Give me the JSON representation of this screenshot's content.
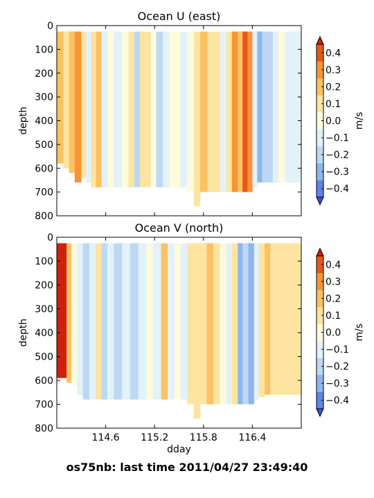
{
  "footer_text": "os75nb: last time 2011/04/27 23:49:40",
  "colors": {
    "levels": [
      "#3a50e6",
      "#5e84e8",
      "#8fb6ee",
      "#bcd8f4",
      "#e2f1fa",
      "#fdfbdc",
      "#fde4a0",
      "#fbc162",
      "#f89436",
      "#ea5518",
      "#cf2010"
    ],
    "no_data": "#ffffff",
    "frame": "#000000"
  },
  "chart_data": [
    {
      "type": "heatmap",
      "title": "Ocean U (east)",
      "ylabel": "depth",
      "xlabel": "",
      "xlim": [
        114.0,
        117.0
      ],
      "ylim": [
        800,
        0
      ],
      "xticks": [
        114.6,
        115.2,
        115.8,
        116.4
      ],
      "xtick_labels": [
        "",
        "",
        "",
        ""
      ],
      "yticks": [
        0,
        100,
        200,
        300,
        400,
        500,
        600,
        700,
        800
      ],
      "ytick_labels": [
        "0",
        "100",
        "200",
        "300",
        "400",
        "500",
        "600",
        "700",
        "800"
      ],
      "colorbar": {
        "label": "m/s",
        "levels": [
          -0.45,
          -0.35,
          -0.25,
          -0.15,
          -0.05,
          0.05,
          0.15,
          0.25,
          0.35,
          0.45
        ],
        "ticks": [
          -0.4,
          -0.3,
          -0.2,
          -0.1,
          0.0,
          0.1,
          0.2,
          0.3,
          0.4
        ],
        "tick_labels": [
          "−0.4",
          "−0.3",
          "−0.2",
          "−0.1",
          "0.0",
          "0.1",
          "0.2",
          "0.3",
          "0.4"
        ],
        "extend": "both"
      },
      "columns": [
        {
          "x0": 114.0,
          "x1": 114.08,
          "v": 0.15,
          "top": 25,
          "bottom": 580
        },
        {
          "x0": 114.08,
          "x1": 114.15,
          "v": 0.05,
          "top": 25,
          "bottom": 600
        },
        {
          "x0": 114.15,
          "x1": 114.22,
          "v": 0.22,
          "top": 25,
          "bottom": 620
        },
        {
          "x0": 114.22,
          "x1": 114.3,
          "v": 0.25,
          "top": 25,
          "bottom": 660
        },
        {
          "x0": 114.3,
          "x1": 114.36,
          "v": 0.12,
          "top": 25,
          "bottom": 640
        },
        {
          "x0": 114.36,
          "x1": 114.42,
          "v": -0.15,
          "top": 25,
          "bottom": 660
        },
        {
          "x0": 114.42,
          "x1": 114.48,
          "v": 0.08,
          "top": 25,
          "bottom": 680
        },
        {
          "x0": 114.48,
          "x1": 114.55,
          "v": 0.22,
          "top": 25,
          "bottom": 680
        },
        {
          "x0": 114.55,
          "x1": 114.62,
          "v": -0.12,
          "top": 25,
          "bottom": 680
        },
        {
          "x0": 114.62,
          "x1": 114.7,
          "v": -0.05,
          "top": 25,
          "bottom": 680
        },
        {
          "x0": 114.7,
          "x1": 114.8,
          "v": -0.15,
          "top": 25,
          "bottom": 680
        },
        {
          "x0": 114.8,
          "x1": 114.88,
          "v": 0.0,
          "top": 25,
          "bottom": 680
        },
        {
          "x0": 114.88,
          "x1": 114.95,
          "v": 0.08,
          "top": 25,
          "bottom": 680
        },
        {
          "x0": 114.95,
          "x1": 115.02,
          "v": -0.22,
          "top": 25,
          "bottom": 680
        },
        {
          "x0": 115.02,
          "x1": 115.08,
          "v": 0.05,
          "top": 25,
          "bottom": 680
        },
        {
          "x0": 115.08,
          "x1": 115.15,
          "v": 0.1,
          "top": 25,
          "bottom": 680
        },
        {
          "x0": 115.15,
          "x1": 115.22,
          "v": -0.05,
          "top": 25,
          "bottom": 680
        },
        {
          "x0": 115.22,
          "x1": 115.3,
          "v": -0.2,
          "top": 25,
          "bottom": 680
        },
        {
          "x0": 115.3,
          "x1": 115.38,
          "v": -0.1,
          "top": 25,
          "bottom": 680
        },
        {
          "x0": 115.38,
          "x1": 115.45,
          "v": -0.05,
          "top": 25,
          "bottom": 680
        },
        {
          "x0": 115.45,
          "x1": 115.52,
          "v": 0.0,
          "top": 25,
          "bottom": 680
        },
        {
          "x0": 115.52,
          "x1": 115.6,
          "v": -0.12,
          "top": 25,
          "bottom": 680
        },
        {
          "x0": 115.6,
          "x1": 115.68,
          "v": -0.05,
          "top": 25,
          "bottom": 700
        },
        {
          "x0": 115.68,
          "x1": 115.76,
          "v": 0.05,
          "top": 25,
          "bottom": 760
        },
        {
          "x0": 115.76,
          "x1": 115.85,
          "v": 0.2,
          "top": 25,
          "bottom": 700
        },
        {
          "x0": 115.85,
          "x1": 115.93,
          "v": 0.05,
          "top": 25,
          "bottom": 700
        },
        {
          "x0": 115.93,
          "x1": 116.0,
          "v": 0.1,
          "top": 25,
          "bottom": 700
        },
        {
          "x0": 116.0,
          "x1": 116.08,
          "v": -0.08,
          "top": 25,
          "bottom": 700
        },
        {
          "x0": 116.08,
          "x1": 116.15,
          "v": 0.05,
          "top": 25,
          "bottom": 700
        },
        {
          "x0": 116.15,
          "x1": 116.22,
          "v": 0.25,
          "top": 25,
          "bottom": 700
        },
        {
          "x0": 116.22,
          "x1": 116.28,
          "v": 0.15,
          "top": 25,
          "bottom": 700
        },
        {
          "x0": 116.28,
          "x1": 116.34,
          "v": 0.38,
          "top": 25,
          "bottom": 700
        },
        {
          "x0": 116.34,
          "x1": 116.4,
          "v": 0.28,
          "top": 25,
          "bottom": 700
        },
        {
          "x0": 116.4,
          "x1": 116.46,
          "v": -0.15,
          "top": 25,
          "bottom": 680
        },
        {
          "x0": 116.46,
          "x1": 116.52,
          "v": -0.3,
          "top": 25,
          "bottom": 660
        },
        {
          "x0": 116.52,
          "x1": 116.58,
          "v": -0.2,
          "top": 25,
          "bottom": 660
        },
        {
          "x0": 116.58,
          "x1": 116.65,
          "v": -0.22,
          "top": 25,
          "bottom": 660
        },
        {
          "x0": 116.65,
          "x1": 116.72,
          "v": -0.15,
          "top": 25,
          "bottom": 660
        },
        {
          "x0": 116.72,
          "x1": 116.8,
          "v": -0.05,
          "top": 25,
          "bottom": 660
        },
        {
          "x0": 116.8,
          "x1": 116.9,
          "v": -0.12,
          "top": 25,
          "bottom": 660
        },
        {
          "x0": 116.9,
          "x1": 117.0,
          "v": -0.1,
          "top": 25,
          "bottom": 660
        }
      ]
    },
    {
      "type": "heatmap",
      "title": "Ocean V (north)",
      "ylabel": "depth",
      "xlabel": "dday",
      "xlim": [
        114.0,
        117.0
      ],
      "ylim": [
        800,
        0
      ],
      "xticks": [
        114.6,
        115.2,
        115.8,
        116.4
      ],
      "xtick_labels": [
        "114.6",
        "115.2",
        "115.8",
        "116.4"
      ],
      "yticks": [
        0,
        100,
        200,
        300,
        400,
        500,
        600,
        700,
        800
      ],
      "ytick_labels": [
        "0",
        "100",
        "200",
        "300",
        "400",
        "500",
        "600",
        "700",
        "800"
      ],
      "colorbar": {
        "label": "m/s",
        "levels": [
          -0.45,
          -0.35,
          -0.25,
          -0.15,
          -0.05,
          0.05,
          0.15,
          0.25,
          0.35,
          0.45
        ],
        "ticks": [
          -0.4,
          -0.3,
          -0.2,
          -0.1,
          0.0,
          0.1,
          0.2,
          0.3,
          0.4
        ],
        "tick_labels": [
          "−0.4",
          "−0.3",
          "−0.2",
          "−0.1",
          "0.0",
          "0.1",
          "0.2",
          "0.3",
          "0.4"
        ],
        "extend": "both"
      },
      "columns": [
        {
          "x0": 114.0,
          "x1": 114.12,
          "v": 0.45,
          "top": 25,
          "bottom": 590
        },
        {
          "x0": 114.12,
          "x1": 114.18,
          "v": 0.2,
          "top": 25,
          "bottom": 610
        },
        {
          "x0": 114.18,
          "x1": 114.25,
          "v": -0.05,
          "top": 25,
          "bottom": 620
        },
        {
          "x0": 114.25,
          "x1": 114.32,
          "v": -0.12,
          "top": 25,
          "bottom": 660
        },
        {
          "x0": 114.32,
          "x1": 114.4,
          "v": -0.25,
          "top": 25,
          "bottom": 680
        },
        {
          "x0": 114.4,
          "x1": 114.48,
          "v": -0.1,
          "top": 25,
          "bottom": 680
        },
        {
          "x0": 114.48,
          "x1": 114.55,
          "v": 0.05,
          "top": 25,
          "bottom": 680
        },
        {
          "x0": 114.55,
          "x1": 114.62,
          "v": -0.2,
          "top": 25,
          "bottom": 680
        },
        {
          "x0": 114.62,
          "x1": 114.7,
          "v": -0.1,
          "top": 25,
          "bottom": 680
        },
        {
          "x0": 114.7,
          "x1": 114.8,
          "v": -0.22,
          "top": 25,
          "bottom": 680
        },
        {
          "x0": 114.8,
          "x1": 114.9,
          "v": -0.1,
          "top": 25,
          "bottom": 680
        },
        {
          "x0": 114.9,
          "x1": 115.0,
          "v": -0.2,
          "top": 25,
          "bottom": 680
        },
        {
          "x0": 115.0,
          "x1": 115.1,
          "v": -0.1,
          "top": 25,
          "bottom": 680
        },
        {
          "x0": 115.1,
          "x1": 115.18,
          "v": -0.05,
          "top": 25,
          "bottom": 680
        },
        {
          "x0": 115.18,
          "x1": 115.28,
          "v": -0.15,
          "top": 25,
          "bottom": 680
        },
        {
          "x0": 115.28,
          "x1": 115.36,
          "v": 0.15,
          "top": 25,
          "bottom": 680
        },
        {
          "x0": 115.36,
          "x1": 115.44,
          "v": -0.1,
          "top": 25,
          "bottom": 680
        },
        {
          "x0": 115.44,
          "x1": 115.52,
          "v": -0.05,
          "top": 25,
          "bottom": 680
        },
        {
          "x0": 115.52,
          "x1": 115.6,
          "v": -0.12,
          "top": 25,
          "bottom": 680
        },
        {
          "x0": 115.6,
          "x1": 115.68,
          "v": 0.05,
          "top": 25,
          "bottom": 700
        },
        {
          "x0": 115.68,
          "x1": 115.76,
          "v": 0.1,
          "top": 25,
          "bottom": 760
        },
        {
          "x0": 115.76,
          "x1": 115.84,
          "v": 0.05,
          "top": 25,
          "bottom": 700
        },
        {
          "x0": 115.84,
          "x1": 115.92,
          "v": 0.18,
          "top": 25,
          "bottom": 700
        },
        {
          "x0": 115.92,
          "x1": 116.0,
          "v": 0.05,
          "top": 25,
          "bottom": 700
        },
        {
          "x0": 116.0,
          "x1": 116.08,
          "v": -0.05,
          "top": 25,
          "bottom": 700
        },
        {
          "x0": 116.08,
          "x1": 116.15,
          "v": -0.12,
          "top": 25,
          "bottom": 700
        },
        {
          "x0": 116.15,
          "x1": 116.22,
          "v": 0.1,
          "top": 25,
          "bottom": 700
        },
        {
          "x0": 116.22,
          "x1": 116.28,
          "v": -0.3,
          "top": 25,
          "bottom": 700
        },
        {
          "x0": 116.28,
          "x1": 116.35,
          "v": -0.22,
          "top": 25,
          "bottom": 700
        },
        {
          "x0": 116.35,
          "x1": 116.42,
          "v": -0.3,
          "top": 25,
          "bottom": 700
        },
        {
          "x0": 116.42,
          "x1": 116.48,
          "v": -0.15,
          "top": 25,
          "bottom": 680
        },
        {
          "x0": 116.48,
          "x1": 116.55,
          "v": 0.05,
          "top": 25,
          "bottom": 670
        },
        {
          "x0": 116.55,
          "x1": 116.62,
          "v": 0.15,
          "top": 25,
          "bottom": 660
        },
        {
          "x0": 116.62,
          "x1": 116.7,
          "v": 0.12,
          "top": 25,
          "bottom": 660
        },
        {
          "x0": 116.7,
          "x1": 116.8,
          "v": 0.05,
          "top": 25,
          "bottom": 660
        },
        {
          "x0": 116.8,
          "x1": 116.9,
          "v": 0.1,
          "top": 25,
          "bottom": 660
        },
        {
          "x0": 116.9,
          "x1": 117.0,
          "v": 0.05,
          "top": 25,
          "bottom": 660
        }
      ]
    }
  ]
}
